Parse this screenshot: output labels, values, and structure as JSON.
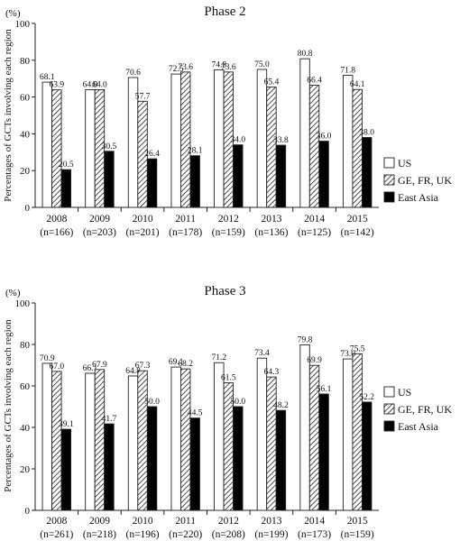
{
  "y_unit_label": "(%)",
  "y_axis_label": "Percentages of GCTs involving each region",
  "legend": [
    {
      "label": "US",
      "pattern": "white"
    },
    {
      "label": "GE, FR, UK",
      "pattern": "hatch"
    },
    {
      "label": "East Asia",
      "pattern": "black"
    }
  ],
  "chart_data": [
    {
      "type": "bar",
      "title": "Phase 2",
      "ylim": [
        0,
        100
      ],
      "yticks": [
        0,
        20,
        40,
        60,
        80,
        100
      ],
      "legend_position": "right",
      "categories": [
        "2008",
        "2009",
        "2010",
        "2011",
        "2012",
        "2013",
        "2014",
        "2015"
      ],
      "sample_sizes": [
        "(n=166)",
        "(n=203)",
        "(n=201)",
        "(n=178)",
        "(n=159)",
        "(n=136)",
        "(n=125)",
        "(n=142)"
      ],
      "series": [
        {
          "name": "US",
          "values": [
            68.1,
            64.0,
            70.6,
            72.5,
            74.8,
            75.0,
            80.8,
            71.8
          ]
        },
        {
          "name": "GE, FR, UK",
          "values": [
            63.9,
            64.0,
            57.7,
            73.6,
            73.6,
            65.4,
            66.4,
            64.1
          ]
        },
        {
          "name": "East Asia",
          "values": [
            20.5,
            30.5,
            26.4,
            28.1,
            34.0,
            33.8,
            36.0,
            38.0
          ]
        }
      ]
    },
    {
      "type": "bar",
      "title": "Phase 3",
      "ylim": [
        0,
        100
      ],
      "yticks": [
        0,
        20,
        40,
        60,
        80,
        100
      ],
      "legend_position": "right",
      "categories": [
        "2008",
        "2009",
        "2010",
        "2011",
        "2012",
        "2013",
        "2014",
        "2015"
      ],
      "sample_sizes": [
        "(n=261)",
        "(n=218)",
        "(n=196)",
        "(n=220)",
        "(n=208)",
        "(n=199)",
        "(n=173)",
        "(n=159)"
      ],
      "series": [
        {
          "name": "US",
          "values": [
            70.9,
            66.1,
            64.8,
            69.1,
            71.2,
            73.4,
            79.8,
            73.0
          ]
        },
        {
          "name": "GE, FR, UK",
          "values": [
            67.0,
            67.9,
            67.3,
            68.2,
            61.5,
            64.3,
            69.9,
            75.5
          ]
        },
        {
          "name": "East Asia",
          "values": [
            39.1,
            41.7,
            50.0,
            44.5,
            50.0,
            48.2,
            56.1,
            52.2
          ]
        }
      ]
    }
  ]
}
